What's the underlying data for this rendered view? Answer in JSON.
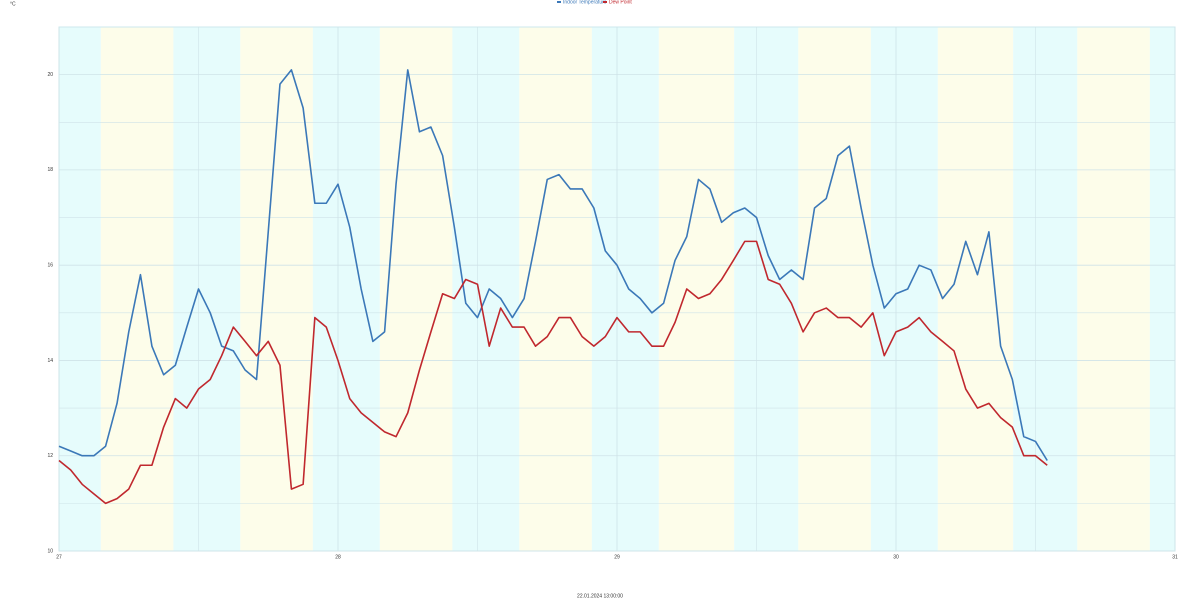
{
  "chart_data": {
    "type": "line",
    "y_label": "°C",
    "x_label": "22.01.2024 13:00:00",
    "legend": "top",
    "grid": true,
    "xlim": [
      27,
      31
    ],
    "xticks": [
      27,
      28,
      29,
      30,
      31
    ],
    "ylim": [
      10,
      21
    ],
    "yticks": [
      10,
      12,
      14,
      16,
      18,
      20
    ],
    "bands": [
      {
        "start": 27,
        "end": 27.15,
        "color": "#e6fcfc"
      },
      {
        "start": 27.15,
        "end": 27.41,
        "color": "#fdfdea"
      },
      {
        "start": 27.41,
        "end": 27.65,
        "color": "#e6fcfc"
      },
      {
        "start": 27.65,
        "end": 27.91,
        "color": "#fdfdea"
      },
      {
        "start": 27.91,
        "end": 28.15,
        "color": "#e6fcfc"
      },
      {
        "start": 28.15,
        "end": 28.41,
        "color": "#fdfdea"
      },
      {
        "start": 28.41,
        "end": 28.65,
        "color": "#e6fcfc"
      },
      {
        "start": 28.65,
        "end": 28.91,
        "color": "#fdfdea"
      },
      {
        "start": 28.91,
        "end": 29.15,
        "color": "#e6fcfc"
      },
      {
        "start": 29.15,
        "end": 29.42,
        "color": "#fdfdea"
      },
      {
        "start": 29.42,
        "end": 29.65,
        "color": "#e6fcfc"
      },
      {
        "start": 29.65,
        "end": 29.91,
        "color": "#fdfdea"
      },
      {
        "start": 29.91,
        "end": 30.15,
        "color": "#e6fcfc"
      },
      {
        "start": 30.15,
        "end": 30.42,
        "color": "#fdfdea"
      },
      {
        "start": 30.42,
        "end": 30.65,
        "color": "#e6fcfc"
      },
      {
        "start": 30.65,
        "end": 30.91,
        "color": "#fdfdea"
      },
      {
        "start": 30.91,
        "end": 31,
        "color": "#e6fcfc"
      }
    ],
    "x": [
      27,
      27.042,
      27.083,
      27.125,
      27.167,
      27.208,
      27.25,
      27.292,
      27.333,
      27.375,
      27.417,
      27.458,
      27.5,
      27.542,
      27.583,
      27.625,
      27.667,
      27.708,
      27.75,
      27.792,
      27.833,
      27.875,
      27.917,
      27.958,
      28,
      28.042,
      28.083,
      28.125,
      28.167,
      28.208,
      28.25,
      28.292,
      28.333,
      28.375,
      28.417,
      28.458,
      28.5,
      28.542,
      28.583,
      28.625,
      28.667,
      28.708,
      28.75,
      28.792,
      28.833,
      28.875,
      28.917,
      28.958,
      29,
      29.042,
      29.083,
      29.125,
      29.167,
      29.208,
      29.25,
      29.292,
      29.333,
      29.375,
      29.417,
      29.458,
      29.5,
      29.542,
      29.583,
      29.625,
      29.667,
      29.708,
      29.75,
      29.792,
      29.833,
      29.875,
      29.917,
      29.958,
      30,
      30.042,
      30.083,
      30.125,
      30.167,
      30.208,
      30.25,
      30.292,
      30.333,
      30.375,
      30.417,
      30.458,
      30.5,
      30.542
    ],
    "series": [
      {
        "name": "Indoor Temperature",
        "color": "#3b78b8",
        "values": [
          12.2,
          12.1,
          12.0,
          12.0,
          12.2,
          13.1,
          14.6,
          15.8,
          14.3,
          13.7,
          13.9,
          14.7,
          15.5,
          15.0,
          14.3,
          14.2,
          13.8,
          13.6,
          16.7,
          19.8,
          20.1,
          19.3,
          17.3,
          17.3,
          17.7,
          16.8,
          15.5,
          14.4,
          14.6,
          17.7,
          20.1,
          18.8,
          18.9,
          18.3,
          16.8,
          15.2,
          14.9,
          15.5,
          15.3,
          14.9,
          15.3,
          16.5,
          17.8,
          17.9,
          17.6,
          17.6,
          17.2,
          16.3,
          16.0,
          15.5,
          15.3,
          15.0,
          15.2,
          16.1,
          16.6,
          17.8,
          17.6,
          16.9,
          17.1,
          17.2,
          17.0,
          16.2,
          15.7,
          15.9,
          15.7,
          17.2,
          17.4,
          18.3,
          18.5,
          17.2,
          16.0,
          15.1,
          15.4,
          15.5,
          16.0,
          15.9,
          15.3,
          15.6,
          16.5,
          15.8,
          16.7,
          14.3,
          13.6,
          12.4,
          12.3,
          11.9
        ]
      },
      {
        "name": "Dew Point",
        "color": "#c0282e",
        "values": [
          11.9,
          11.7,
          11.4,
          11.2,
          11.0,
          11.1,
          11.3,
          11.8,
          11.8,
          12.6,
          13.2,
          13.0,
          13.4,
          13.6,
          14.1,
          14.7,
          14.4,
          14.1,
          14.4,
          13.9,
          11.3,
          11.4,
          14.9,
          14.7,
          14.0,
          13.2,
          12.9,
          12.7,
          12.5,
          12.4,
          12.9,
          13.8,
          14.6,
          15.4,
          15.3,
          15.7,
          15.6,
          14.3,
          15.1,
          14.7,
          14.7,
          14.3,
          14.5,
          14.9,
          14.9,
          14.5,
          14.3,
          14.5,
          14.9,
          14.6,
          14.6,
          14.3,
          14.3,
          14.8,
          15.5,
          15.3,
          15.4,
          15.7,
          16.1,
          16.5,
          16.5,
          15.7,
          15.6,
          15.2,
          14.6,
          15.0,
          15.1,
          14.9,
          14.9,
          14.7,
          15.0,
          14.1,
          14.6,
          14.7,
          14.9,
          14.6,
          14.4,
          14.2,
          13.4,
          13.0,
          13.1,
          12.8,
          12.6,
          12.0,
          12.0,
          11.8
        ]
      }
    ]
  }
}
